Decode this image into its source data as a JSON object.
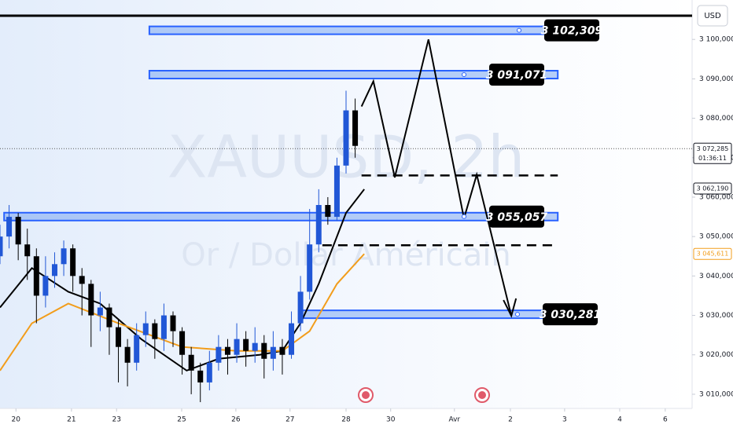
{
  "chart_data": {
    "type": "candlestick",
    "watermark": "XAUUSD, 2h",
    "subtitle": "Or / Dollar Américain",
    "currency_button": "USD",
    "xlim": [
      0,
      152
    ],
    "ylim": [
      3006.4,
      3110
    ],
    "xticks": [
      {
        "value": 3.5,
        "label": "20"
      },
      {
        "value": 15.7,
        "label": "21"
      },
      {
        "value": 25.6,
        "label": "23"
      },
      {
        "value": 39.9,
        "label": "25"
      },
      {
        "value": 51.8,
        "label": "26"
      },
      {
        "value": 63.7,
        "label": "27"
      },
      {
        "value": 76,
        "label": "28"
      },
      {
        "value": 85.8,
        "label": "30"
      },
      {
        "value": 99.8,
        "label": "Avr"
      },
      {
        "value": 112.1,
        "label": "2"
      },
      {
        "value": 124,
        "label": "3"
      },
      {
        "value": 136.1,
        "label": "4"
      },
      {
        "value": 146.1,
        "label": "6"
      }
    ],
    "yticks": [
      {
        "value": 3010,
        "label": "3 010,000"
      },
      {
        "value": 3020,
        "label": "3 020,000"
      },
      {
        "value": 3030,
        "label": "3 030,000"
      },
      {
        "value": 3040,
        "label": "3 040,000"
      },
      {
        "value": 3050,
        "label": "3 050,000"
      },
      {
        "value": 3060,
        "label": "3 060,000"
      },
      {
        "value": 3070,
        "label": "3 070,000"
      },
      {
        "value": 3080,
        "label": "3 080,000"
      },
      {
        "value": 3090,
        "label": "3 090,000"
      },
      {
        "value": 3100,
        "label": "3 100,000"
      }
    ],
    "up_color": "#2157d6",
    "down_color": "#000000",
    "candles": {
      "x": [
        0,
        2,
        4,
        6,
        8,
        10,
        12,
        14,
        16,
        18,
        20,
        22,
        24,
        26,
        28,
        30,
        32,
        34,
        36,
        38,
        40,
        42,
        44,
        46,
        48,
        50,
        52,
        54,
        56,
        58,
        60,
        62,
        64,
        66,
        68,
        70,
        72,
        74,
        76,
        78
      ],
      "open": [
        3045,
        3050,
        3055,
        3048,
        3045,
        3035,
        3040,
        3043,
        3047,
        3040,
        3038,
        3030,
        3032,
        3027,
        3022,
        3018,
        3025,
        3028,
        3024,
        3030,
        3026,
        3020,
        3016,
        3013,
        3018,
        3022,
        3020,
        3024,
        3021,
        3023,
        3019,
        3022,
        3020,
        3028,
        3036,
        3048,
        3058,
        3055,
        3068,
        3082
      ],
      "high": [
        3053,
        3058,
        3056,
        3052,
        3047,
        3045,
        3046,
        3049,
        3048,
        3042,
        3039,
        3036,
        3033,
        3029,
        3024,
        3028,
        3031,
        3029,
        3033,
        3031,
        3027,
        3022,
        3018,
        3021,
        3025,
        3024,
        3028,
        3026,
        3027,
        3025,
        3026,
        3024,
        3031,
        3040,
        3057,
        3062,
        3060,
        3070,
        3087,
        3085
      ],
      "low": [
        3043,
        3047,
        3044,
        3039,
        3028,
        3032,
        3037,
        3040,
        3036,
        3030,
        3022,
        3026,
        3020,
        3013,
        3012,
        3016,
        3022,
        3019,
        3021,
        3022,
        3015,
        3010,
        3008,
        3011,
        3016,
        3015,
        3018,
        3017,
        3018,
        3014,
        3016,
        3015,
        3019,
        3026,
        3034,
        3046,
        3053,
        3054,
        3066,
        3070
      ],
      "close": [
        3050,
        3055,
        3048,
        3045,
        3035,
        3040,
        3043,
        3047,
        3040,
        3038,
        3030,
        3032,
        3027,
        3022,
        3018,
        3025,
        3028,
        3024,
        3030,
        3026,
        3020,
        3016,
        3013,
        3018,
        3022,
        3020,
        3024,
        3021,
        3023,
        3019,
        3022,
        3020,
        3028,
        3036,
        3048,
        3058,
        3055,
        3068,
        3082,
        3073
      ]
    },
    "series": [
      {
        "color": "#000000",
        "x": [
          0,
          7,
          15,
          22,
          31,
          41,
          48,
          57,
          62,
          66,
          70,
          76,
          80
        ],
        "values": [
          3032,
          3042,
          3036,
          3033,
          3024,
          3016,
          3019,
          3020,
          3021,
          3028,
          3038,
          3056,
          3062
        ]
      },
      {
        "color": "#f29d1b",
        "x": [
          0,
          7,
          15,
          26,
          40,
          52,
          62,
          68,
          74,
          80
        ],
        "values": [
          3016,
          3028,
          3033,
          3028,
          3022,
          3021,
          3021,
          3026,
          3038,
          3045.6
        ]
      }
    ],
    "zones": [
      {
        "value": 3102.309,
        "label": "3 102,309",
        "x_start": 32.8,
        "x_end": 122.5
      },
      {
        "value": 3091.071,
        "label": "3 091,071",
        "x_start": 32.8,
        "x_end": 122.5
      },
      {
        "value": 3055.057,
        "label": "3 055,057",
        "x_start": 0.9,
        "x_end": 122.5
      },
      {
        "value": 3030.281,
        "label": "3 030,281",
        "x_start": 65.6,
        "x_end": 120.9
      }
    ],
    "levels": [
      {
        "value": 3065.5,
        "x_start": 79.4,
        "x_end": 122.5
      },
      {
        "value": 3047.8,
        "x_start": 70.8,
        "x_end": 122.5
      }
    ],
    "projection": {
      "x": [
        79.4,
        82,
        86.7,
        94.1,
        101.9,
        104.7,
        112.3
      ],
      "values": [
        3083,
        3089.4,
        3065,
        3100,
        3054.6,
        3065.7,
        3029.9
      ]
    },
    "price_labels": [
      {
        "value": 3072.285,
        "label": "3 072,285",
        "countdown": "01:36:11",
        "color": "#131722"
      },
      {
        "value": 3062.19,
        "label": "3 062,190",
        "color": "#131722"
      },
      {
        "value": 3045.611,
        "label": "3 045,611",
        "color": "#f29d1b"
      }
    ]
  }
}
